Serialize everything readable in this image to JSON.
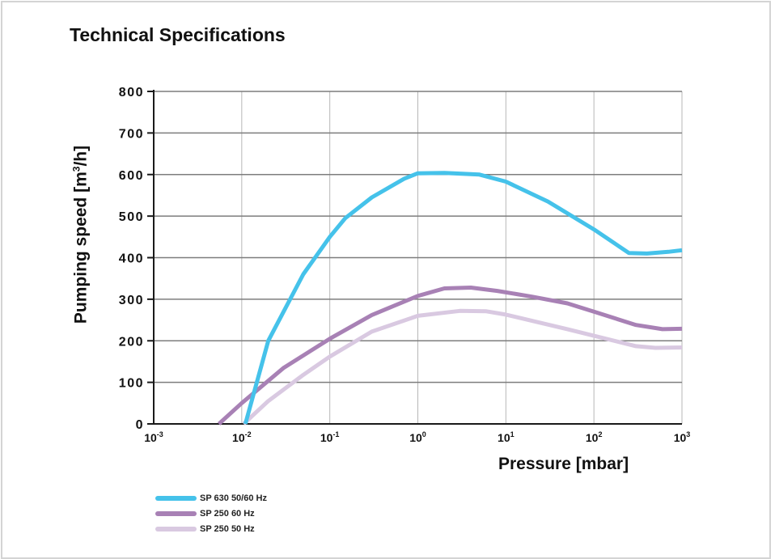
{
  "page": {
    "title": "Technical Specifications"
  },
  "chart_data": {
    "type": "line",
    "title": "Technical Specifications",
    "xlabel": "Pressure  [mbar]",
    "ylabel": {
      "main": "Pumping speed  [m",
      "sup": "3",
      "tail": "/h]"
    },
    "x_scale": "log",
    "xlim": [
      0.001,
      1000
    ],
    "ylim": [
      0,
      800
    ],
    "x_ticks": [
      {
        "value": 0.001,
        "base": "10",
        "exp": "-3"
      },
      {
        "value": 0.01,
        "base": "10",
        "exp": "-2"
      },
      {
        "value": 0.1,
        "base": "10",
        "exp": "-1"
      },
      {
        "value": 1,
        "base": "10",
        "exp": "0"
      },
      {
        "value": 10,
        "base": "10",
        "exp": "1"
      },
      {
        "value": 100,
        "base": "10",
        "exp": "2"
      },
      {
        "value": 1000,
        "base": "10",
        "exp": "3"
      }
    ],
    "y_ticks": [
      "0",
      "100",
      "200",
      "300",
      "400",
      "500",
      "600",
      "700",
      "800"
    ],
    "grid": true,
    "legend_position": "bottom-left",
    "series": [
      {
        "name": "SP 630 50/60 Hz",
        "color": "#45c2ea",
        "points": [
          [
            0.011,
            0
          ],
          [
            0.02,
            200
          ],
          [
            0.05,
            360
          ],
          [
            0.1,
            450
          ],
          [
            0.15,
            495
          ],
          [
            0.3,
            545
          ],
          [
            0.7,
            590
          ],
          [
            1,
            603
          ],
          [
            2,
            604
          ],
          [
            5,
            600
          ],
          [
            10,
            583
          ],
          [
            30,
            535
          ],
          [
            100,
            468
          ],
          [
            250,
            411
          ],
          [
            400,
            410
          ],
          [
            700,
            414
          ],
          [
            1000,
            418
          ]
        ]
      },
      {
        "name": "SP 250 60 Hz",
        "color": "#a881b5",
        "points": [
          [
            0.0055,
            0
          ],
          [
            0.01,
            50
          ],
          [
            0.03,
            135
          ],
          [
            0.1,
            205
          ],
          [
            0.3,
            262
          ],
          [
            1,
            308
          ],
          [
            2,
            326
          ],
          [
            4,
            328
          ],
          [
            8,
            320
          ],
          [
            20,
            306
          ],
          [
            50,
            290
          ],
          [
            100,
            270
          ],
          [
            300,
            238
          ],
          [
            600,
            228
          ],
          [
            1000,
            229
          ]
        ]
      },
      {
        "name": "SP 250 50 Hz",
        "color": "#d9c9e1",
        "points": [
          [
            0.0105,
            0
          ],
          [
            0.02,
            55
          ],
          [
            0.05,
            118
          ],
          [
            0.1,
            162
          ],
          [
            0.3,
            222
          ],
          [
            1,
            260
          ],
          [
            3,
            272
          ],
          [
            6,
            271
          ],
          [
            10,
            263
          ],
          [
            50,
            228
          ],
          [
            100,
            212
          ],
          [
            300,
            187
          ],
          [
            500,
            183
          ],
          [
            1000,
            184
          ]
        ]
      }
    ]
  }
}
